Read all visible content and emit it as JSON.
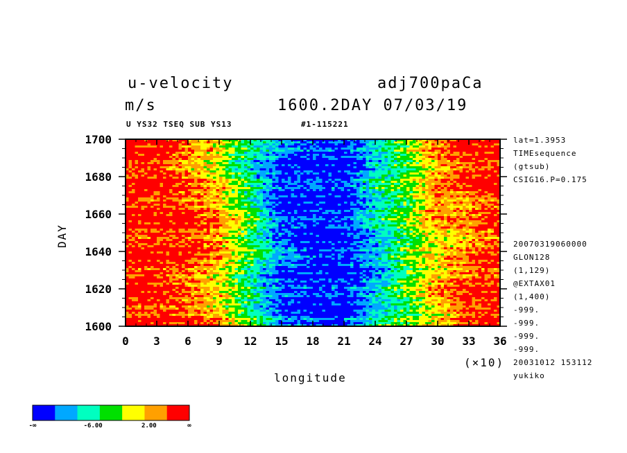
{
  "header": {
    "variable": "u-velocity",
    "experiment": "adj700paCa",
    "units": "m/s",
    "time_stamp": "1600.2DAY 07/03/19",
    "subtitle_left": "U YS32 TSEQ SUB YS13",
    "subtitle_right": "#1-115221"
  },
  "side_info": {
    "top": [
      "lat=1.3953",
      "TIMEsequence",
      "(gtsub)",
      "CSIG16.P=0.175"
    ],
    "bottom": [
      "20070319060000",
      "GLON128",
      "(1,129)",
      "@EXTAX01",
      "(1,400)",
      "-999.",
      "-999.",
      "-999.",
      "-999.",
      "20031012 153112",
      "yukiko"
    ]
  },
  "colorbar": {
    "colors": [
      "#0000ff",
      "#00a8ff",
      "#00ffc0",
      "#00e000",
      "#ffff00",
      "#ffa000",
      "#ff0000"
    ],
    "labels": [
      "-∞",
      "-6.00",
      "2.00",
      "∞"
    ]
  },
  "chart_data": {
    "type": "heatmap",
    "title": "u-velocity",
    "xlabel": "longitude",
    "x_multiplier": "(×10)",
    "ylabel": "DAY",
    "xlim": [
      0,
      36
    ],
    "ylim": [
      1600,
      1700
    ],
    "x_ticks": [
      "0",
      "3",
      "6",
      "9",
      "12",
      "15",
      "18",
      "21",
      "24",
      "27",
      "30",
      "33",
      "36"
    ],
    "y_ticks": [
      "1600",
      "1620",
      "1640",
      "1660",
      "1680",
      "1700"
    ],
    "levels": [
      -6.0,
      2.0
    ],
    "pattern": "strong easterlies (blue) near longitude 130-250 (x10 label 13-25); westerlies (red) near 0-100 and 300-360",
    "columns": [
      {
        "x": 0,
        "values": [
          6,
          6,
          6,
          6,
          6,
          6
        ]
      },
      {
        "x": 3,
        "values": [
          6,
          6,
          6,
          6,
          6,
          6
        ]
      },
      {
        "x": 6,
        "values": [
          5,
          5,
          6,
          6,
          5,
          6
        ]
      },
      {
        "x": 9,
        "values": [
          4,
          4,
          5,
          5,
          4,
          5
        ]
      },
      {
        "x": 12,
        "values": [
          2,
          2,
          3,
          3,
          2,
          3
        ]
      },
      {
        "x": 15,
        "values": [
          1,
          0,
          0,
          1,
          0,
          1
        ]
      },
      {
        "x": 18,
        "values": [
          0,
          0,
          0,
          0,
          0,
          0
        ]
      },
      {
        "x": 21,
        "values": [
          0,
          0,
          0,
          0,
          0,
          0
        ]
      },
      {
        "x": 24,
        "values": [
          1,
          2,
          2,
          1,
          1,
          2
        ]
      },
      {
        "x": 27,
        "values": [
          3,
          3,
          3,
          3,
          3,
          3
        ]
      },
      {
        "x": 30,
        "values": [
          5,
          5,
          5,
          4,
          5,
          4
        ]
      },
      {
        "x": 33,
        "values": [
          6,
          6,
          5,
          5,
          6,
          6
        ]
      },
      {
        "x": 36,
        "values": [
          6,
          6,
          6,
          6,
          6,
          6
        ]
      }
    ]
  }
}
